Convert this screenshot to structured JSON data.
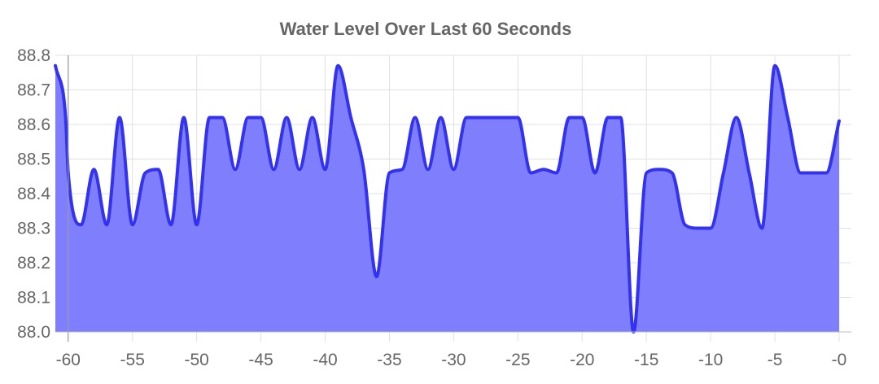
{
  "chart_data": {
    "type": "area",
    "title": "Water Level Over Last 60 Seconds",
    "xlabel": "",
    "ylabel": "",
    "xlim": [
      -61,
      0
    ],
    "ylim": [
      88.0,
      88.8
    ],
    "x_ticks": [
      -60,
      -55,
      -50,
      -45,
      -40,
      -35,
      -30,
      -25,
      -20,
      -15,
      -10,
      -5,
      0
    ],
    "x_tick_labels": [
      "-60",
      "-55",
      "-50",
      "-45",
      "-40",
      "-35",
      "-30",
      "-25",
      "-20",
      "-15",
      "-10",
      "-5",
      "-0"
    ],
    "y_ticks": [
      88.0,
      88.1,
      88.2,
      88.3,
      88.4,
      88.5,
      88.6,
      88.7,
      88.8
    ],
    "y_tick_labels": [
      "88.0",
      "88.1",
      "88.2",
      "88.3",
      "88.4",
      "88.5",
      "88.6",
      "88.7",
      "88.8"
    ],
    "grid": true,
    "legend": "none",
    "colors": {
      "line": "#3232f0",
      "fill": "#7f7ffe",
      "grid": "#e0e0e0",
      "text": "#666666"
    },
    "series": [
      {
        "x": [
          -61,
          -60.2,
          -60,
          -59,
          -58,
          -57,
          -56,
          -55,
          -54,
          -53,
          -52,
          -51,
          -50,
          -49,
          -48,
          -47,
          -46,
          -45,
          -44,
          -43,
          -42,
          -41,
          -40,
          -39,
          -38,
          -37,
          -36,
          -35,
          -34,
          -33,
          -32,
          -31,
          -30,
          -29,
          -28,
          -27,
          -26,
          -25,
          -24,
          -23,
          -22,
          -21,
          -20,
          -19,
          -18,
          -17,
          -16,
          -15,
          -14,
          -13,
          -12,
          -11,
          -10,
          -9,
          -8,
          -7,
          -6,
          -5,
          -4,
          -3,
          -2,
          -1,
          0
        ],
        "values": [
          88.77,
          88.62,
          88.46,
          88.31,
          88.47,
          88.31,
          88.62,
          88.31,
          88.46,
          88.47,
          88.31,
          88.62,
          88.31,
          88.62,
          88.62,
          88.47,
          88.62,
          88.62,
          88.47,
          88.62,
          88.47,
          88.62,
          88.47,
          88.77,
          88.62,
          88.47,
          88.16,
          88.46,
          88.47,
          88.62,
          88.47,
          88.62,
          88.47,
          88.62,
          88.62,
          88.62,
          88.62,
          88.62,
          88.46,
          88.47,
          88.46,
          88.62,
          88.62,
          88.46,
          88.62,
          88.62,
          88.0,
          88.46,
          88.47,
          88.46,
          88.31,
          88.3,
          88.3,
          88.46,
          88.62,
          88.46,
          88.3,
          88.77,
          88.62,
          88.46,
          88.46,
          88.46,
          88.61
        ]
      }
    ]
  }
}
